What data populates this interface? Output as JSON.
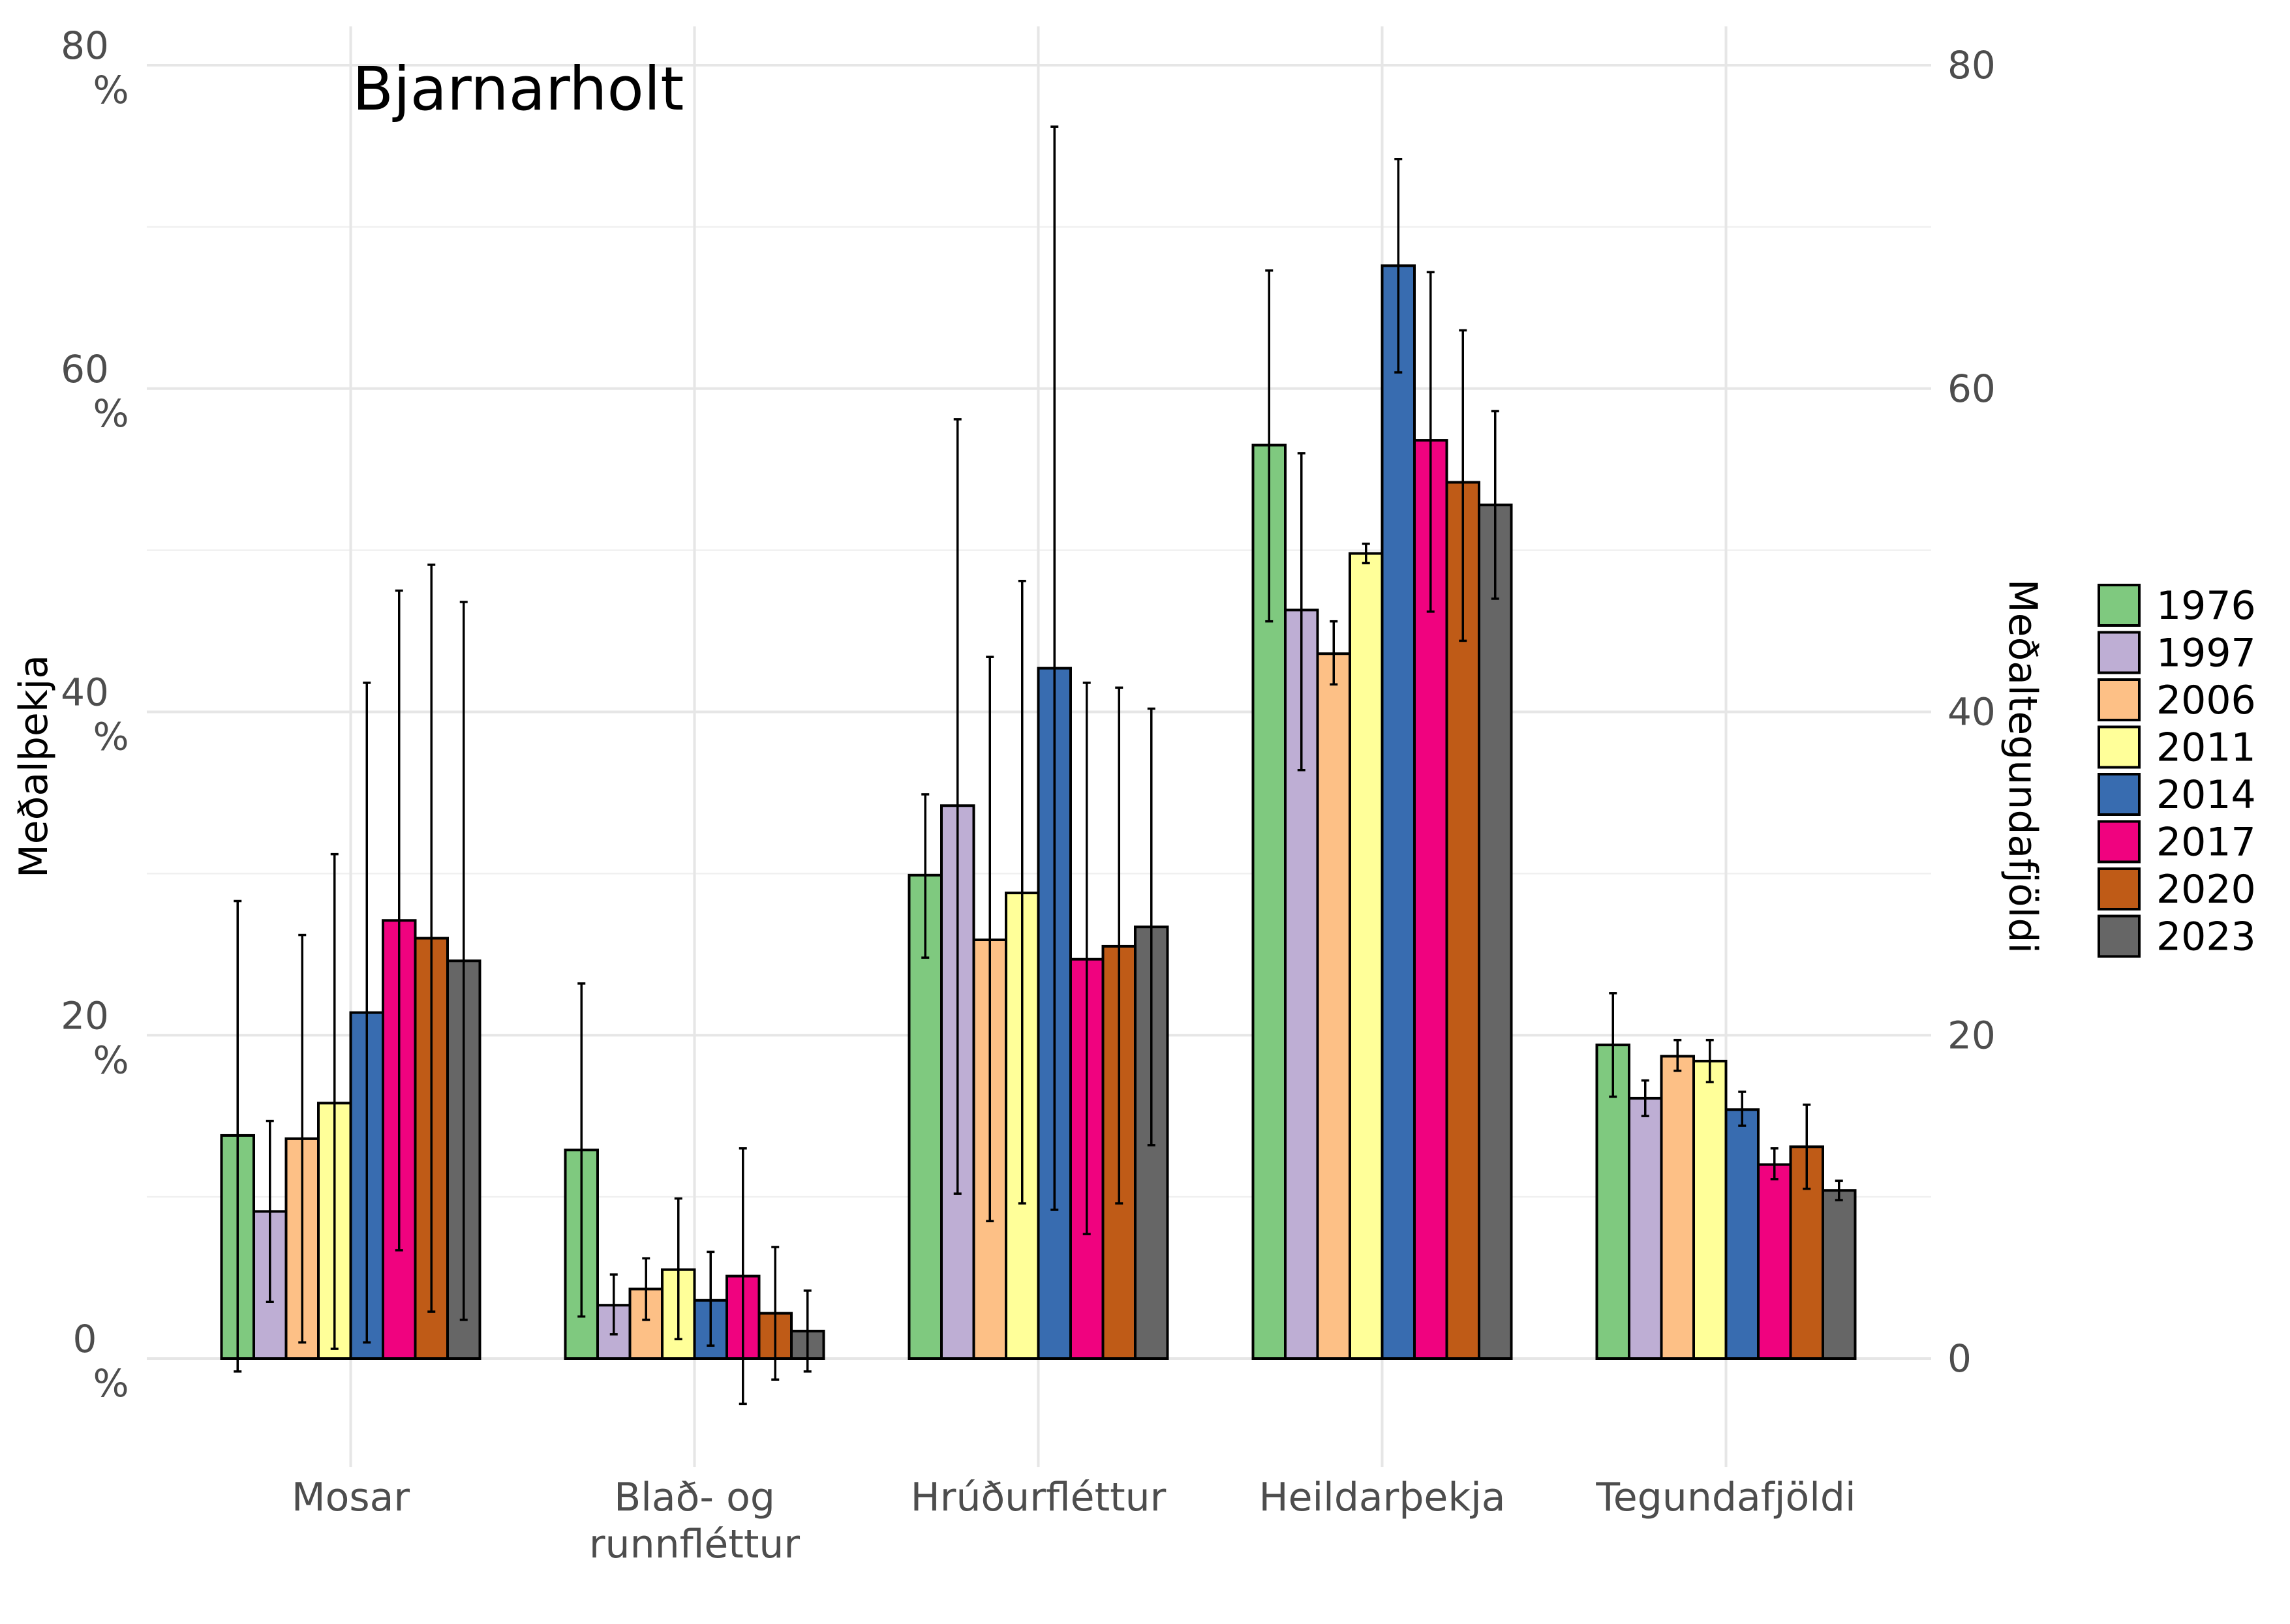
{
  "chart_data": {
    "type": "bar",
    "title": "Bjarnarholt",
    "ylabel": "Meðalþekja",
    "ylabel_right": "Meðaltegundafjöldi",
    "y_tick_values": [
      0,
      20,
      40,
      60,
      80
    ],
    "y_tick_left_labels": [
      [
        "0",
        "%"
      ],
      [
        "20",
        "%"
      ],
      [
        "40",
        "%"
      ],
      [
        "60",
        "%"
      ],
      [
        "80",
        "%"
      ]
    ],
    "y_tick_right_labels": [
      "0",
      "20",
      "40",
      "60",
      "80"
    ],
    "ylim": [
      -6.5,
      82
    ],
    "grid": true,
    "legend_position": "right",
    "categories": [
      [
        "Mosar"
      ],
      [
        "Blað- og",
        "runnfléttur"
      ],
      [
        "Hrúðurfléttur"
      ],
      [
        "Heildarþekja"
      ],
      [
        "Tegundafjöldi"
      ]
    ],
    "series": [
      {
        "name": "1976",
        "color": "#7FC97F",
        "values": [
          13.8,
          12.9,
          29.9,
          56.5,
          19.4
        ],
        "err_low": [
          -0.8,
          2.6,
          24.8,
          45.6,
          16.2
        ],
        "err_high": [
          28.3,
          23.2,
          34.9,
          67.3,
          22.6
        ]
      },
      {
        "name": "1997",
        "color": "#BEAED4",
        "values": [
          9.1,
          3.3,
          34.2,
          46.3,
          16.1
        ],
        "err_low": [
          3.5,
          1.5,
          10.2,
          36.4,
          15.0
        ],
        "err_high": [
          14.7,
          5.2,
          58.1,
          56.0,
          17.2
        ]
      },
      {
        "name": "2006",
        "color": "#FDC086",
        "values": [
          13.6,
          4.3,
          25.9,
          43.6,
          18.7
        ],
        "err_low": [
          1.0,
          2.4,
          8.5,
          41.7,
          17.8
        ],
        "err_high": [
          26.2,
          6.2,
          43.4,
          45.6,
          19.7
        ]
      },
      {
        "name": "2011",
        "color": "#FFFF99",
        "values": [
          15.8,
          5.5,
          28.8,
          49.8,
          18.4
        ],
        "err_low": [
          0.6,
          1.2,
          9.6,
          49.2,
          17.1
        ],
        "err_high": [
          31.2,
          9.9,
          48.1,
          50.4,
          19.7
        ]
      },
      {
        "name": "2014",
        "color": "#386CB0",
        "values": [
          21.4,
          3.6,
          42.7,
          67.6,
          15.4
        ],
        "err_low": [
          1.0,
          0.8,
          9.2,
          61.0,
          14.4
        ],
        "err_high": [
          41.8,
          6.6,
          76.2,
          74.2,
          16.5
        ]
      },
      {
        "name": "2017",
        "color": "#F0027F",
        "values": [
          27.1,
          5.1,
          24.7,
          56.8,
          12.0
        ],
        "err_low": [
          6.7,
          -2.8,
          7.7,
          46.2,
          11.1
        ],
        "err_high": [
          47.5,
          13.0,
          41.8,
          67.2,
          13.0
        ]
      },
      {
        "name": "2020",
        "color": "#BF5B17",
        "values": [
          26.0,
          2.8,
          25.5,
          54.2,
          13.1
        ],
        "err_low": [
          2.9,
          -1.3,
          9.6,
          44.4,
          10.5
        ],
        "err_high": [
          49.1,
          6.9,
          41.5,
          63.6,
          15.7
        ]
      },
      {
        "name": "2023",
        "color": "#666666",
        "values": [
          24.6,
          1.7,
          26.7,
          52.8,
          10.4
        ],
        "err_low": [
          2.4,
          -0.8,
          13.2,
          47.0,
          9.8
        ],
        "err_high": [
          46.8,
          4.2,
          40.2,
          58.6,
          11.0
        ]
      }
    ]
  }
}
